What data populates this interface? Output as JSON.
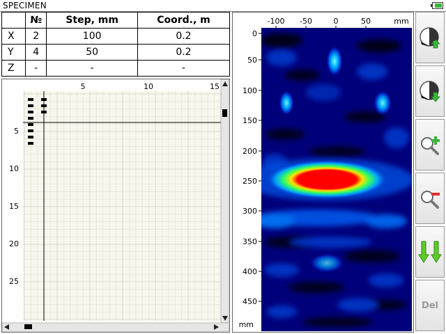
{
  "title": "SPECIMEN",
  "battery_level": 0.8,
  "table": {
    "headers": [
      "",
      "№",
      "Step, mm",
      "Coord., m"
    ],
    "rows": [
      {
        "axis": "X",
        "num": "2",
        "step": "100",
        "coord": "0.2"
      },
      {
        "axis": "Y",
        "num": "4",
        "step": "50",
        "coord": "0.2"
      },
      {
        "axis": "Z",
        "num": "-",
        "step": "-",
        "coord": "-"
      }
    ]
  },
  "grid": {
    "x_ticks": [
      "5",
      "10",
      "15"
    ],
    "y_ticks": [
      "5",
      "10",
      "15",
      "20",
      "25"
    ]
  },
  "bscan": {
    "x_ticks": [
      "-100",
      "-50",
      "0",
      "50",
      "mm"
    ],
    "y_ticks": [
      "0",
      "50",
      "100",
      "150",
      "200",
      "250",
      "300",
      "350",
      "400",
      "450",
      "mm"
    ],
    "colors": {
      "background": "#000080",
      "hot": "#ff0000"
    }
  },
  "toolbar": {
    "buttons": [
      {
        "icon": "gain-up-icon"
      },
      {
        "icon": "gain-down-icon"
      },
      {
        "icon": "zoom-in-icon"
      },
      {
        "icon": "zoom-out-icon"
      },
      {
        "icon": "scroll-down-icon"
      },
      {
        "label": "Del"
      }
    ]
  }
}
